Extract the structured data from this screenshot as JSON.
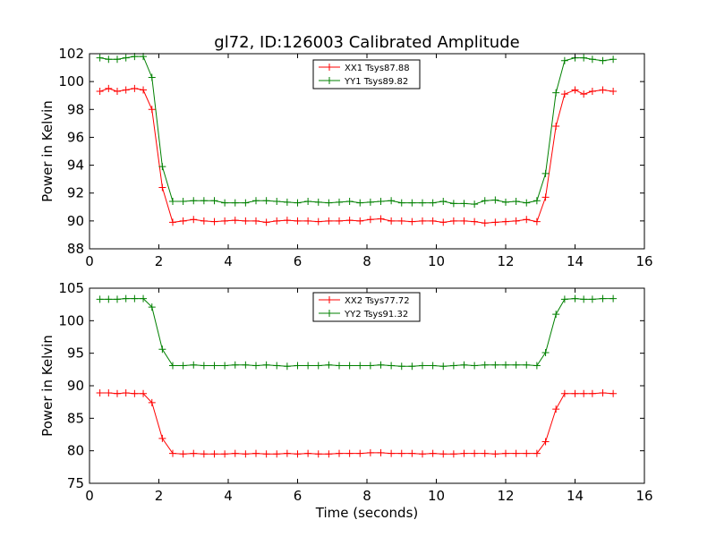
{
  "figure": {
    "title": "gl72, ID:126003 Calibrated Amplitude"
  },
  "chart_data": [
    {
      "type": "line",
      "ylabel": "Power in Kelvin",
      "xlabel": "",
      "xlim": [
        0,
        16
      ],
      "ylim": [
        88,
        102
      ],
      "xticks": [
        0,
        2,
        4,
        6,
        8,
        10,
        12,
        14,
        16
      ],
      "yticks": [
        88,
        90,
        92,
        94,
        96,
        98,
        100,
        102
      ],
      "grid": false,
      "legend_position": "top-center",
      "x": [
        0.3,
        0.55,
        0.8,
        1.05,
        1.3,
        1.55,
        1.8,
        2.1,
        2.4,
        2.7,
        3.0,
        3.3,
        3.6,
        3.9,
        4.2,
        4.5,
        4.8,
        5.1,
        5.4,
        5.7,
        6.0,
        6.3,
        6.6,
        6.9,
        7.2,
        7.5,
        7.8,
        8.1,
        8.4,
        8.7,
        9.0,
        9.3,
        9.6,
        9.9,
        10.2,
        10.5,
        10.8,
        11.1,
        11.4,
        11.7,
        12.0,
        12.3,
        12.6,
        12.9,
        13.15,
        13.45,
        13.7,
        14.0,
        14.25,
        14.5,
        14.8,
        15.1
      ],
      "series": [
        {
          "name": "XX1 Tsys87.88",
          "color": "#ff0000",
          "values": [
            99.3,
            99.5,
            99.3,
            99.4,
            99.5,
            99.4,
            98.0,
            92.4,
            89.9,
            90.0,
            90.1,
            90.0,
            89.95,
            90.0,
            90.05,
            90.0,
            90.0,
            89.9,
            90.0,
            90.05,
            90.0,
            90.0,
            89.95,
            90.0,
            90.0,
            90.05,
            90.0,
            90.1,
            90.15,
            90.0,
            90.0,
            89.95,
            90.0,
            90.0,
            89.9,
            90.0,
            90.0,
            89.95,
            89.85,
            89.9,
            89.95,
            90.0,
            90.1,
            89.95,
            91.7,
            96.8,
            99.1,
            99.4,
            99.1,
            99.3,
            99.4,
            99.3
          ]
        },
        {
          "name": "YY1 Tsys89.82",
          "color": "#008000",
          "values": [
            101.7,
            101.6,
            101.6,
            101.7,
            101.8,
            101.8,
            100.3,
            93.9,
            91.4,
            91.4,
            91.45,
            91.45,
            91.45,
            91.3,
            91.3,
            91.3,
            91.45,
            91.45,
            91.4,
            91.35,
            91.3,
            91.4,
            91.35,
            91.3,
            91.35,
            91.4,
            91.3,
            91.35,
            91.4,
            91.45,
            91.3,
            91.3,
            91.3,
            91.3,
            91.4,
            91.25,
            91.25,
            91.2,
            91.45,
            91.5,
            91.35,
            91.4,
            91.3,
            91.45,
            93.4,
            99.2,
            101.5,
            101.7,
            101.7,
            101.6,
            101.5,
            101.6
          ]
        }
      ]
    },
    {
      "type": "line",
      "ylabel": "Power in Kelvin",
      "xlabel": "Time (seconds)",
      "xlim": [
        0,
        16
      ],
      "ylim": [
        75,
        105
      ],
      "xticks": [
        0,
        2,
        4,
        6,
        8,
        10,
        12,
        14,
        16
      ],
      "yticks": [
        75,
        80,
        85,
        90,
        95,
        100,
        105
      ],
      "grid": false,
      "legend_position": "top-center",
      "x": [
        0.3,
        0.55,
        0.8,
        1.05,
        1.3,
        1.55,
        1.8,
        2.1,
        2.4,
        2.7,
        3.0,
        3.3,
        3.6,
        3.9,
        4.2,
        4.5,
        4.8,
        5.1,
        5.4,
        5.7,
        6.0,
        6.3,
        6.6,
        6.9,
        7.2,
        7.5,
        7.8,
        8.1,
        8.4,
        8.7,
        9.0,
        9.3,
        9.6,
        9.9,
        10.2,
        10.5,
        10.8,
        11.1,
        11.4,
        11.7,
        12.0,
        12.3,
        12.6,
        12.9,
        13.15,
        13.45,
        13.7,
        14.0,
        14.25,
        14.5,
        14.8,
        15.1
      ],
      "series": [
        {
          "name": "XX2 Tsys77.72",
          "color": "#ff0000",
          "values": [
            88.9,
            88.9,
            88.8,
            88.9,
            88.8,
            88.8,
            87.4,
            81.9,
            79.6,
            79.5,
            79.6,
            79.5,
            79.5,
            79.5,
            79.6,
            79.5,
            79.6,
            79.5,
            79.5,
            79.6,
            79.5,
            79.6,
            79.5,
            79.5,
            79.6,
            79.6,
            79.6,
            79.7,
            79.7,
            79.6,
            79.6,
            79.6,
            79.5,
            79.6,
            79.5,
            79.5,
            79.6,
            79.6,
            79.6,
            79.5,
            79.6,
            79.6,
            79.6,
            79.6,
            81.4,
            86.4,
            88.8,
            88.8,
            88.8,
            88.8,
            88.9,
            88.8
          ]
        },
        {
          "name": "YY2 Tsys91.32",
          "color": "#008000",
          "values": [
            103.3,
            103.3,
            103.3,
            103.4,
            103.4,
            103.4,
            102.1,
            95.6,
            93.1,
            93.1,
            93.2,
            93.1,
            93.1,
            93.1,
            93.2,
            93.2,
            93.1,
            93.2,
            93.1,
            93.0,
            93.1,
            93.1,
            93.1,
            93.2,
            93.1,
            93.1,
            93.1,
            93.1,
            93.2,
            93.1,
            93.0,
            93.0,
            93.1,
            93.1,
            93.0,
            93.1,
            93.2,
            93.1,
            93.2,
            93.2,
            93.2,
            93.2,
            93.2,
            93.1,
            95.1,
            101.0,
            103.3,
            103.4,
            103.3,
            103.3,
            103.4,
            103.4
          ]
        }
      ]
    }
  ]
}
